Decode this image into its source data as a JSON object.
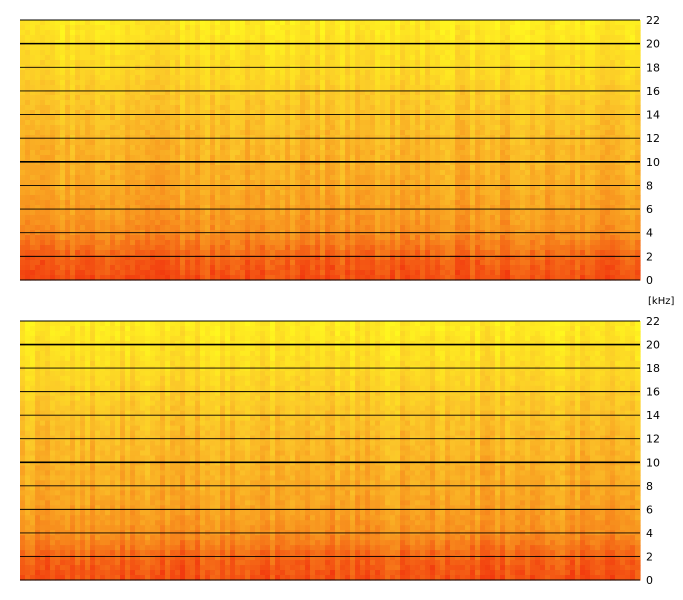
{
  "chart_data": [
    {
      "type": "heatmap",
      "kind": "spectrogram",
      "channel": "upper",
      "ylim": [
        0,
        22
      ],
      "y_unit": "kHz",
      "y_ticks": [
        0,
        2,
        4,
        6,
        8,
        10,
        12,
        14,
        16,
        18,
        20,
        22
      ],
      "y_tick_labels": [
        "0",
        "2",
        "4",
        "6",
        "8",
        "10",
        "12",
        "14",
        "16",
        "18",
        "20",
        "22"
      ],
      "grid": true,
      "colormap": [
        "#f23a0e",
        "#f7881c",
        "#fbc629",
        "#fff71e"
      ],
      "intensity_profile": {
        "freq_khz": [
          0,
          2,
          4,
          6,
          8,
          10,
          12,
          14,
          16,
          18,
          20,
          22
        ],
        "level": [
          0.08,
          0.18,
          0.38,
          0.46,
          0.52,
          0.56,
          0.6,
          0.66,
          0.72,
          0.8,
          0.86,
          0.92
        ]
      }
    },
    {
      "type": "heatmap",
      "kind": "spectrogram",
      "channel": "lower",
      "ylim": [
        0,
        22
      ],
      "y_unit": "kHz",
      "y_ticks": [
        0,
        2,
        4,
        6,
        8,
        10,
        12,
        14,
        16,
        18,
        20,
        22
      ],
      "y_tick_labels": [
        "0",
        "2",
        "4",
        "6",
        "8",
        "10",
        "12",
        "14",
        "16",
        "18",
        "20",
        "22"
      ],
      "grid": true,
      "colormap": [
        "#f23a0e",
        "#f7881c",
        "#fbc629",
        "#fff71e"
      ],
      "intensity_profile": {
        "freq_khz": [
          0,
          2,
          4,
          6,
          8,
          10,
          12,
          14,
          16,
          18,
          20,
          22
        ],
        "level": [
          0.08,
          0.18,
          0.38,
          0.46,
          0.52,
          0.56,
          0.6,
          0.66,
          0.72,
          0.8,
          0.86,
          0.92
        ]
      }
    }
  ],
  "unit_label": "[kHz]"
}
